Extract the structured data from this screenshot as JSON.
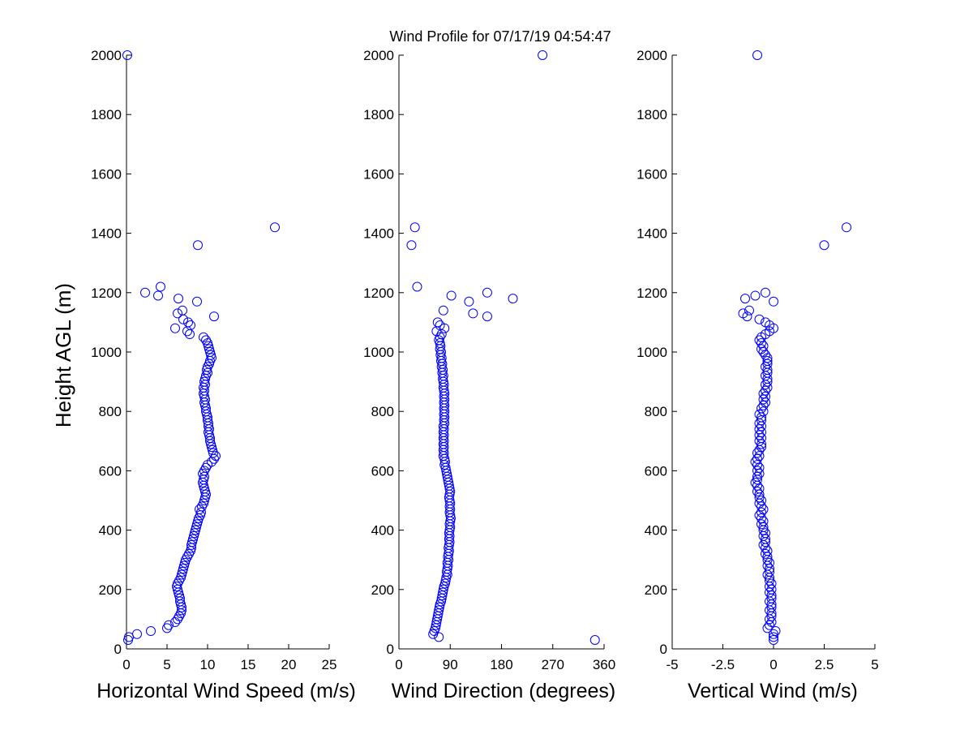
{
  "title": "Wind Profile for  07/17/19 04:54:47",
  "ylabel": "Height AGL (m)",
  "colors": {
    "marker": "#0000ff",
    "axis": "#000000",
    "background": "#ffffff"
  },
  "chart_data": [
    {
      "type": "scatter",
      "xlabel": "Horizontal Wind Speed (m/s)",
      "ylabel": "Height AGL (m)",
      "xlim": [
        0,
        25
      ],
      "ylim": [
        0,
        2000
      ],
      "xticks": [
        "0",
        "5",
        "10",
        "15",
        "20",
        "25"
      ],
      "yticks": [
        "0",
        "200",
        "400",
        "600",
        "800",
        "1000",
        "1200",
        "1400",
        "1600",
        "1800",
        "2000"
      ],
      "points": [
        [
          0.1,
          2000
        ],
        [
          18.3,
          1420
        ],
        [
          8.8,
          1360
        ],
        [
          4.2,
          1220
        ],
        [
          2.3,
          1200
        ],
        [
          3.9,
          1190
        ],
        [
          6.4,
          1180
        ],
        [
          8.7,
          1170
        ],
        [
          6.9,
          1140
        ],
        [
          6.3,
          1130
        ],
        [
          10.8,
          1120
        ],
        [
          7.0,
          1110
        ],
        [
          7.6,
          1100
        ],
        [
          7.9,
          1090
        ],
        [
          6.0,
          1080
        ],
        [
          7.5,
          1070
        ],
        [
          7.8,
          1060
        ],
        [
          9.5,
          1050
        ],
        [
          9.8,
          1040
        ],
        [
          10.0,
          1030
        ],
        [
          10.1,
          1020
        ],
        [
          10.2,
          1010
        ],
        [
          10.3,
          1000
        ],
        [
          10.4,
          990
        ],
        [
          10.5,
          980
        ],
        [
          10.3,
          970
        ],
        [
          10.2,
          960
        ],
        [
          10.0,
          950
        ],
        [
          9.9,
          940
        ],
        [
          10.0,
          930
        ],
        [
          9.8,
          920
        ],
        [
          9.7,
          910
        ],
        [
          9.6,
          900
        ],
        [
          9.7,
          890
        ],
        [
          9.5,
          880
        ],
        [
          9.6,
          870
        ],
        [
          9.5,
          860
        ],
        [
          9.6,
          850
        ],
        [
          9.7,
          840
        ],
        [
          9.6,
          830
        ],
        [
          9.7,
          820
        ],
        [
          9.8,
          810
        ],
        [
          9.8,
          800
        ],
        [
          9.9,
          790
        ],
        [
          10.0,
          780
        ],
        [
          10.0,
          770
        ],
        [
          10.1,
          760
        ],
        [
          10.1,
          750
        ],
        [
          10.2,
          740
        ],
        [
          10.1,
          730
        ],
        [
          10.2,
          720
        ],
        [
          10.3,
          710
        ],
        [
          10.3,
          700
        ],
        [
          10.4,
          690
        ],
        [
          10.5,
          680
        ],
        [
          10.6,
          670
        ],
        [
          10.7,
          660
        ],
        [
          11.0,
          650
        ],
        [
          10.8,
          640
        ],
        [
          10.5,
          630
        ],
        [
          10.0,
          620
        ],
        [
          9.8,
          610
        ],
        [
          9.6,
          600
        ],
        [
          9.4,
          590
        ],
        [
          9.6,
          580
        ],
        [
          9.5,
          570
        ],
        [
          9.4,
          560
        ],
        [
          9.5,
          550
        ],
        [
          9.6,
          540
        ],
        [
          9.7,
          530
        ],
        [
          9.8,
          520
        ],
        [
          9.7,
          510
        ],
        [
          9.6,
          500
        ],
        [
          9.5,
          490
        ],
        [
          9.3,
          480
        ],
        [
          9.0,
          470
        ],
        [
          9.2,
          460
        ],
        [
          9.1,
          450
        ],
        [
          8.9,
          440
        ],
        [
          8.8,
          430
        ],
        [
          8.7,
          420
        ],
        [
          8.6,
          410
        ],
        [
          8.5,
          400
        ],
        [
          8.4,
          390
        ],
        [
          8.3,
          380
        ],
        [
          8.2,
          370
        ],
        [
          8.1,
          360
        ],
        [
          8.0,
          350
        ],
        [
          8.0,
          340
        ],
        [
          7.9,
          330
        ],
        [
          7.7,
          320
        ],
        [
          7.5,
          310
        ],
        [
          7.3,
          300
        ],
        [
          7.2,
          290
        ],
        [
          7.1,
          280
        ],
        [
          7.0,
          270
        ],
        [
          6.9,
          260
        ],
        [
          6.8,
          250
        ],
        [
          6.7,
          240
        ],
        [
          6.5,
          230
        ],
        [
          6.3,
          220
        ],
        [
          6.2,
          210
        ],
        [
          6.3,
          200
        ],
        [
          6.4,
          190
        ],
        [
          6.5,
          180
        ],
        [
          6.6,
          170
        ],
        [
          6.6,
          160
        ],
        [
          6.7,
          150
        ],
        [
          6.8,
          140
        ],
        [
          6.8,
          130
        ],
        [
          6.7,
          120
        ],
        [
          6.5,
          110
        ],
        [
          6.3,
          100
        ],
        [
          6.0,
          90
        ],
        [
          5.2,
          80
        ],
        [
          5.0,
          70
        ],
        [
          3.0,
          60
        ],
        [
          1.3,
          50
        ],
        [
          0.3,
          40
        ],
        [
          0.2,
          30
        ]
      ]
    },
    {
      "type": "scatter",
      "xlabel": "Wind Direction (degrees)",
      "ylabel": "Height AGL (m)",
      "xlim": [
        0,
        360
      ],
      "ylim": [
        0,
        2000
      ],
      "xticks": [
        "0",
        "90",
        "180",
        "270",
        "360"
      ],
      "yticks": [
        "0",
        "200",
        "400",
        "600",
        "800",
        "1000",
        "1200",
        "1400",
        "1600",
        "1800",
        "2000"
      ],
      "points": [
        [
          252,
          2000
        ],
        [
          28,
          1420
        ],
        [
          22,
          1360
        ],
        [
          32,
          1220
        ],
        [
          155,
          1200
        ],
        [
          92,
          1190
        ],
        [
          200,
          1180
        ],
        [
          123,
          1170
        ],
        [
          130,
          1130
        ],
        [
          155,
          1120
        ],
        [
          78,
          1140
        ],
        [
          68,
          1100
        ],
        [
          72,
          1090
        ],
        [
          66,
          1070
        ],
        [
          80,
          1080
        ],
        [
          75,
          1060
        ],
        [
          72,
          1050
        ],
        [
          70,
          1040
        ],
        [
          72,
          1030
        ],
        [
          73,
          1020
        ],
        [
          72,
          1010
        ],
        [
          74,
          1000
        ],
        [
          73,
          990
        ],
        [
          75,
          980
        ],
        [
          74,
          970
        ],
        [
          76,
          960
        ],
        [
          75,
          950
        ],
        [
          77,
          940
        ],
        [
          76,
          930
        ],
        [
          78,
          920
        ],
        [
          77,
          910
        ],
        [
          78,
          900
        ],
        [
          79,
          890
        ],
        [
          78,
          880
        ],
        [
          79,
          870
        ],
        [
          80,
          860
        ],
        [
          79,
          850
        ],
        [
          80,
          840
        ],
        [
          79,
          830
        ],
        [
          80,
          820
        ],
        [
          79,
          810
        ],
        [
          80,
          800
        ],
        [
          79,
          790
        ],
        [
          80,
          780
        ],
        [
          79,
          770
        ],
        [
          80,
          760
        ],
        [
          78,
          750
        ],
        [
          79,
          740
        ],
        [
          78,
          730
        ],
        [
          79,
          720
        ],
        [
          78,
          710
        ],
        [
          79,
          700
        ],
        [
          78,
          690
        ],
        [
          79,
          680
        ],
        [
          78,
          670
        ],
        [
          79,
          660
        ],
        [
          78,
          650
        ],
        [
          80,
          640
        ],
        [
          81,
          630
        ],
        [
          80,
          620
        ],
        [
          82,
          610
        ],
        [
          83,
          600
        ],
        [
          84,
          590
        ],
        [
          85,
          580
        ],
        [
          86,
          570
        ],
        [
          87,
          560
        ],
        [
          88,
          550
        ],
        [
          89,
          540
        ],
        [
          90,
          530
        ],
        [
          89,
          520
        ],
        [
          88,
          510
        ],
        [
          89,
          500
        ],
        [
          90,
          490
        ],
        [
          89,
          480
        ],
        [
          90,
          470
        ],
        [
          89,
          460
        ],
        [
          90,
          450
        ],
        [
          91,
          440
        ],
        [
          90,
          430
        ],
        [
          89,
          420
        ],
        [
          90,
          410
        ],
        [
          89,
          400
        ],
        [
          88,
          390
        ],
        [
          89,
          380
        ],
        [
          88,
          370
        ],
        [
          89,
          360
        ],
        [
          88,
          350
        ],
        [
          87,
          340
        ],
        [
          88,
          330
        ],
        [
          87,
          320
        ],
        [
          86,
          310
        ],
        [
          87,
          300
        ],
        [
          85,
          290
        ],
        [
          86,
          280
        ],
        [
          85,
          270
        ],
        [
          84,
          260
        ],
        [
          85,
          250
        ],
        [
          83,
          240
        ],
        [
          82,
          230
        ],
        [
          81,
          220
        ],
        [
          79,
          210
        ],
        [
          78,
          200
        ],
        [
          77,
          190
        ],
        [
          76,
          180
        ],
        [
          75,
          170
        ],
        [
          74,
          160
        ],
        [
          72,
          150
        ],
        [
          71,
          140
        ],
        [
          70,
          130
        ],
        [
          69,
          120
        ],
        [
          68,
          110
        ],
        [
          67,
          100
        ],
        [
          66,
          90
        ],
        [
          65,
          80
        ],
        [
          64,
          70
        ],
        [
          62,
          60
        ],
        [
          60,
          50
        ],
        [
          70,
          40
        ],
        [
          344,
          30
        ]
      ]
    },
    {
      "type": "scatter",
      "xlabel": "Vertical Wind (m/s)",
      "ylabel": "Height AGL (m)",
      "xlim": [
        -5,
        5
      ],
      "ylim": [
        0,
        2000
      ],
      "xticks": [
        "-5",
        "-2.5",
        "0",
        "2.5",
        "5"
      ],
      "yticks": [
        "0",
        "200",
        "400",
        "600",
        "800",
        "1000",
        "1200",
        "1400",
        "1600",
        "1800",
        "2000"
      ],
      "points": [
        [
          -0.8,
          2000
        ],
        [
          3.6,
          1420
        ],
        [
          2.5,
          1360
        ],
        [
          -0.4,
          1200
        ],
        [
          -0.9,
          1190
        ],
        [
          -1.4,
          1180
        ],
        [
          0.0,
          1170
        ],
        [
          -1.2,
          1140
        ],
        [
          -1.5,
          1130
        ],
        [
          -1.3,
          1120
        ],
        [
          -0.7,
          1110
        ],
        [
          -0.4,
          1100
        ],
        [
          -0.2,
          1090
        ],
        [
          0.0,
          1080
        ],
        [
          -0.2,
          1070
        ],
        [
          -0.4,
          1060
        ],
        [
          -0.6,
          1050
        ],
        [
          -0.7,
          1040
        ],
        [
          -0.6,
          1030
        ],
        [
          -0.5,
          1020
        ],
        [
          -0.6,
          1010
        ],
        [
          -0.5,
          1000
        ],
        [
          -0.4,
          990
        ],
        [
          -0.3,
          980
        ],
        [
          -0.3,
          970
        ],
        [
          -0.3,
          960
        ],
        [
          -0.4,
          950
        ],
        [
          -0.3,
          940
        ],
        [
          -0.3,
          930
        ],
        [
          -0.4,
          920
        ],
        [
          -0.3,
          910
        ],
        [
          -0.3,
          900
        ],
        [
          -0.4,
          890
        ],
        [
          -0.3,
          880
        ],
        [
          -0.4,
          870
        ],
        [
          -0.5,
          860
        ],
        [
          -0.4,
          850
        ],
        [
          -0.5,
          840
        ],
        [
          -0.4,
          830
        ],
        [
          -0.5,
          820
        ],
        [
          -0.6,
          810
        ],
        [
          -0.5,
          800
        ],
        [
          -0.7,
          790
        ],
        [
          -0.6,
          780
        ],
        [
          -0.6,
          770
        ],
        [
          -0.7,
          760
        ],
        [
          -0.6,
          750
        ],
        [
          -0.7,
          740
        ],
        [
          -0.6,
          730
        ],
        [
          -0.7,
          720
        ],
        [
          -0.6,
          710
        ],
        [
          -0.7,
          700
        ],
        [
          -0.6,
          690
        ],
        [
          -0.6,
          680
        ],
        [
          -0.7,
          670
        ],
        [
          -0.8,
          660
        ],
        [
          -0.7,
          650
        ],
        [
          -0.8,
          640
        ],
        [
          -0.9,
          630
        ],
        [
          -0.8,
          620
        ],
        [
          -0.7,
          610
        ],
        [
          -0.8,
          600
        ],
        [
          -0.7,
          590
        ],
        [
          -0.8,
          580
        ],
        [
          -0.8,
          570
        ],
        [
          -0.9,
          560
        ],
        [
          -0.8,
          550
        ],
        [
          -0.7,
          540
        ],
        [
          -0.8,
          530
        ],
        [
          -0.7,
          520
        ],
        [
          -0.7,
          510
        ],
        [
          -0.6,
          500
        ],
        [
          -0.7,
          490
        ],
        [
          -0.6,
          480
        ],
        [
          -0.5,
          470
        ],
        [
          -0.6,
          460
        ],
        [
          -0.7,
          450
        ],
        [
          -0.6,
          440
        ],
        [
          -0.5,
          430
        ],
        [
          -0.6,
          420
        ],
        [
          -0.5,
          410
        ],
        [
          -0.5,
          400
        ],
        [
          -0.4,
          390
        ],
        [
          -0.5,
          380
        ],
        [
          -0.4,
          370
        ],
        [
          -0.4,
          360
        ],
        [
          -0.5,
          350
        ],
        [
          -0.4,
          340
        ],
        [
          -0.3,
          330
        ],
        [
          -0.4,
          320
        ],
        [
          -0.3,
          310
        ],
        [
          -0.3,
          300
        ],
        [
          -0.2,
          290
        ],
        [
          -0.3,
          280
        ],
        [
          -0.2,
          270
        ],
        [
          -0.2,
          260
        ],
        [
          -0.3,
          250
        ],
        [
          -0.2,
          240
        ],
        [
          -0.2,
          230
        ],
        [
          -0.1,
          220
        ],
        [
          -0.2,
          210
        ],
        [
          -0.1,
          200
        ],
        [
          -0.2,
          190
        ],
        [
          -0.1,
          180
        ],
        [
          -0.1,
          170
        ],
        [
          -0.2,
          160
        ],
        [
          -0.1,
          150
        ],
        [
          -0.1,
          140
        ],
        [
          -0.2,
          130
        ],
        [
          -0.1,
          120
        ],
        [
          -0.1,
          110
        ],
        [
          -0.2,
          100
        ],
        [
          -0.1,
          90
        ],
        [
          -0.2,
          80
        ],
        [
          -0.3,
          70
        ],
        [
          0.1,
          60
        ],
        [
          0.0,
          50
        ],
        [
          0.0,
          40
        ],
        [
          0.0,
          30
        ]
      ]
    }
  ]
}
